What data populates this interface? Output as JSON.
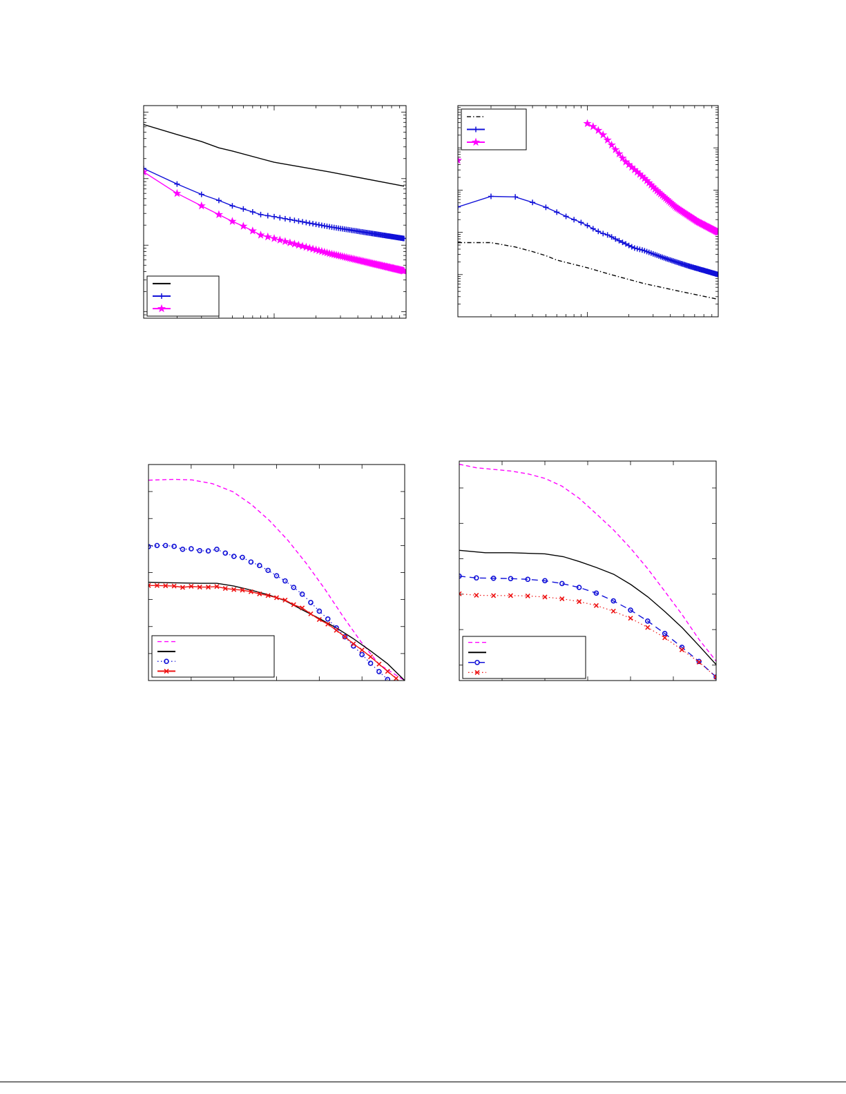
{
  "page": {
    "background": "#ffffff"
  },
  "colors": {
    "black": "#000000",
    "blue": "#1010d8",
    "magenta": "#ff00ff",
    "red": "#ee1111"
  },
  "chart_data": [
    {
      "type": "line",
      "xscale": "log",
      "yscale": "log",
      "xlim": [
        1.15,
        89
      ],
      "ylim": [
        0.0008,
        1.25
      ],
      "grid": false,
      "legend": "bottom-left",
      "series": [
        {
          "color": "#000000",
          "style": "solid",
          "marker": "none",
          "legend": true,
          "x": [
            1.15,
            2,
            3,
            4,
            5,
            10,
            25,
            86
          ],
          "y": [
            0.65,
            0.46,
            0.36,
            0.29,
            0.26,
            0.176,
            0.126,
            0.077
          ]
        },
        {
          "color": "#1010d8",
          "style": "solid",
          "marker": "plus",
          "legend": true,
          "x": [
            1.15,
            2,
            3,
            4,
            5,
            6,
            7,
            8,
            10,
            25,
            86
          ],
          "y": [
            0.142,
            0.083,
            0.058,
            0.047,
            0.039,
            0.035,
            0.0316,
            0.0288,
            0.0268,
            0.0189,
            0.0126
          ]
        },
        {
          "color": "#ff00ff",
          "style": "solid",
          "marker": "star",
          "legend": true,
          "x": [
            1.15,
            2,
            3,
            4,
            5,
            6,
            7,
            8,
            10,
            25,
            86
          ],
          "y": [
            0.126,
            0.06,
            0.039,
            0.0288,
            0.0228,
            0.0193,
            0.0164,
            0.0142,
            0.0126,
            0.0075,
            0.0041
          ]
        }
      ]
    },
    {
      "type": "line",
      "xscale": "log",
      "yscale": "log",
      "xlim": [
        1.15,
        89
      ],
      "ylim": [
        1e-05,
        1
      ],
      "grid": false,
      "legend": "top-left",
      "series": [
        {
          "color": "#000000",
          "style": "dashdot",
          "marker": "none",
          "legend": true,
          "x": [
            1.15,
            2,
            3,
            4,
            5,
            6,
            10,
            14.8,
            25.8,
            44,
            89
          ],
          "y": [
            0.00057,
            0.00057,
            0.00045,
            0.00035,
            0.00028,
            0.00022,
            0.000145,
            0.0001,
            6.1e-05,
            4.2e-05,
            2.6e-05
          ]
        },
        {
          "color": "#1010d8",
          "style": "solid",
          "marker": "plus",
          "legend": true,
          "x": [
            1.15,
            2,
            3,
            4,
            5,
            6,
            7.4,
            8.7,
            10,
            11.3,
            12.7,
            14.3,
            15.8,
            18.6,
            21.7,
            25.8,
            37,
            54,
            89
          ],
          "y": [
            0.004,
            0.0071,
            0.0069,
            0.0051,
            0.0039,
            0.003,
            0.0022,
            0.0018,
            0.00145,
            0.00116,
            0.00096,
            0.00085,
            0.00071,
            0.00055,
            0.00043,
            0.00037,
            0.00024,
            0.00016,
            0.0001
          ]
        },
        {
          "color": "#ff00ff",
          "style": "solid",
          "marker": "star",
          "legend": true,
          "x": [
            10,
            11.4,
            12.8,
            14.2,
            15.6,
            17.2,
            18.8,
            22.1,
            25.8,
            31.8,
            44,
            63,
            89
          ],
          "y": [
            0.376,
            0.3,
            0.215,
            0.145,
            0.1,
            0.069,
            0.048,
            0.03,
            0.0193,
            0.0098,
            0.0039,
            0.0018,
            0.001
          ]
        },
        {
          "color": "#ff00ff",
          "style": "none",
          "marker": "star",
          "legend": false,
          "x": [
            1.15
          ],
          "y": [
            0.051
          ]
        }
      ]
    },
    {
      "type": "line",
      "xscale": "linear",
      "yscale": "linear",
      "xlim": [
        0,
        6
      ],
      "ylim": [
        0,
        8
      ],
      "xticks": [
        1,
        2,
        3,
        4,
        5
      ],
      "yticks": [
        1,
        2,
        3,
        4,
        5,
        6,
        7
      ],
      "grid": false,
      "legend": "bottom-left",
      "series": [
        {
          "color": "#ff00ff",
          "style": "dashed",
          "marker": "none",
          "legend": true,
          "x": [
            0,
            0.59,
            1.02,
            1.5,
            1.98,
            2.41,
            2.83,
            3.26,
            3.69,
            4.12,
            4.55,
            4.97,
            5.4,
            6
          ],
          "y": [
            7.42,
            7.45,
            7.43,
            7.29,
            6.99,
            6.52,
            5.93,
            5.2,
            4.35,
            3.41,
            2.39,
            1.45,
            0.6,
            0
          ]
        },
        {
          "color": "#000000",
          "style": "solid",
          "marker": "none",
          "legend": true,
          "x": [
            0,
            0.6,
            1.2,
            1.6,
            2,
            2.4,
            2.8,
            3.2,
            3.6,
            4,
            4.4,
            4.8,
            5.2,
            5.6,
            6
          ],
          "y": [
            3.64,
            3.62,
            3.6,
            3.6,
            3.5,
            3.35,
            3.18,
            2.96,
            2.62,
            2.3,
            1.95,
            1.55,
            1.1,
            0.62,
            0
          ]
        },
        {
          "color": "#1010d8",
          "style": "dotted",
          "marker": "circle",
          "legend": true,
          "x": [
            0,
            0.2,
            0.4,
            0.6,
            0.8,
            1,
            1.2,
            1.4,
            1.6,
            1.8,
            2,
            2.2,
            2.4,
            2.6,
            2.8,
            3,
            3.2,
            3.4,
            3.6,
            3.8,
            4,
            4.2,
            4.4,
            4.6,
            4.8,
            5,
            5.2,
            5.4,
            5.6
          ],
          "y": [
            4.96,
            5.0,
            5.0,
            4.97,
            4.86,
            4.88,
            4.81,
            4.8,
            4.86,
            4.72,
            4.6,
            4.56,
            4.39,
            4.26,
            4.08,
            3.88,
            3.69,
            3.45,
            3.2,
            2.89,
            2.57,
            2.28,
            1.95,
            1.62,
            1.28,
            0.96,
            0.64,
            0.33,
            0.04
          ]
        },
        {
          "color": "#ee1111",
          "style": "solid",
          "marker": "x",
          "legend": true,
          "x": [
            0,
            0.2,
            0.4,
            0.6,
            0.8,
            1,
            1.2,
            1.4,
            1.6,
            1.8,
            2,
            2.2,
            2.4,
            2.6,
            2.8,
            3,
            3.2,
            3.4,
            3.6,
            3.8,
            4,
            4.2,
            4.4,
            4.6,
            4.8,
            5,
            5.2,
            5.4,
            5.6,
            5.8
          ],
          "y": [
            3.52,
            3.52,
            3.51,
            3.5,
            3.45,
            3.49,
            3.46,
            3.46,
            3.48,
            3.41,
            3.37,
            3.35,
            3.29,
            3.21,
            3.15,
            3.07,
            2.98,
            2.81,
            2.69,
            2.47,
            2.26,
            2.09,
            1.86,
            1.62,
            1.36,
            1.13,
            0.88,
            0.61,
            0.34,
            0.08
          ]
        }
      ]
    },
    {
      "type": "line",
      "xscale": "linear",
      "yscale": "linear",
      "xlim": [
        0,
        6
      ],
      "ylim": [
        0.56,
        6.76
      ],
      "xticks": [
        1,
        2,
        3,
        4,
        5
      ],
      "yticks": [
        1,
        2,
        3,
        4,
        5,
        6
      ],
      "grid": false,
      "legend": "bottom-left",
      "series": [
        {
          "color": "#ff00ff",
          "style": "dashed",
          "marker": "none",
          "legend": true,
          "x": [
            0,
            0.4,
            1.2,
            1.6,
            2.0,
            2.4,
            2.8,
            3.2,
            3.6,
            4.0,
            4.4,
            4.8,
            5.2,
            5.6,
            6
          ],
          "y": [
            6.67,
            6.57,
            6.48,
            6.4,
            6.27,
            6.05,
            5.71,
            5.27,
            4.82,
            4.3,
            3.72,
            3.08,
            2.43,
            1.72,
            1.11
          ]
        },
        {
          "color": "#000000",
          "style": "solid",
          "marker": "none",
          "legend": true,
          "x": [
            0,
            0.61,
            1.2,
            2.0,
            2.43,
            2.81,
            3.21,
            3.61,
            4.01,
            4.41,
            4.81,
            5.21,
            5.61,
            6
          ],
          "y": [
            4.24,
            4.17,
            4.17,
            4.14,
            4.06,
            3.92,
            3.75,
            3.56,
            3.27,
            2.92,
            2.5,
            2.05,
            1.53,
            1.01
          ]
        },
        {
          "color": "#1010d8",
          "style": "longdash",
          "marker": "circle",
          "legend": true,
          "x": [
            0,
            0.4,
            0.8,
            1.2,
            1.6,
            2.0,
            2.4,
            2.8,
            3.2,
            3.6,
            4.0,
            4.4,
            4.8,
            5.2,
            5.6,
            6
          ],
          "y": [
            3.51,
            3.46,
            3.45,
            3.44,
            3.42,
            3.38,
            3.3,
            3.19,
            3.03,
            2.81,
            2.55,
            2.24,
            1.89,
            1.5,
            1.1,
            0.66
          ]
        },
        {
          "color": "#ee1111",
          "style": "dotted",
          "marker": "x",
          "legend": true,
          "x": [
            0,
            0.4,
            0.8,
            1.2,
            1.6,
            2.0,
            2.4,
            2.8,
            3.2,
            3.6,
            4.0,
            4.4,
            4.8,
            5.2,
            5.6,
            6
          ],
          "y": [
            3.01,
            2.97,
            2.96,
            2.96,
            2.95,
            2.92,
            2.87,
            2.79,
            2.68,
            2.52,
            2.32,
            2.06,
            1.77,
            1.43,
            1.08,
            0.66
          ]
        }
      ]
    }
  ]
}
